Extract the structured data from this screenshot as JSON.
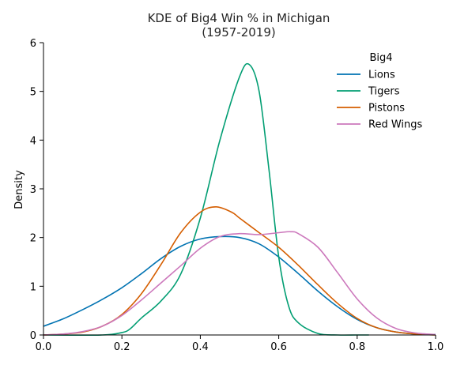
{
  "chart_data": {
    "type": "line",
    "title_line1": "KDE of Big4 Win % in Michigan",
    "title_line2": "(1957-2019)",
    "xlabel": "",
    "ylabel": "Density",
    "xlim": [
      0.0,
      1.0
    ],
    "ylim": [
      0,
      6
    ],
    "xticks": [
      "0.0",
      "0.2",
      "0.4",
      "0.6",
      "0.8",
      "1.0"
    ],
    "yticks": [
      "0",
      "1",
      "2",
      "3",
      "4",
      "5",
      "6"
    ],
    "grid": false,
    "legend": {
      "title": "Big4",
      "placement": "top-right"
    },
    "series": [
      {
        "name": "Lions",
        "color": "#0173b2",
        "x": [
          0.0,
          0.05,
          0.1,
          0.15,
          0.2,
          0.25,
          0.3,
          0.35,
          0.4,
          0.45,
          0.5,
          0.55,
          0.6,
          0.65,
          0.7,
          0.75,
          0.8,
          0.85,
          0.9,
          0.95,
          1.0
        ],
        "y": [
          0.18,
          0.33,
          0.52,
          0.73,
          0.97,
          1.26,
          1.57,
          1.82,
          1.97,
          2.02,
          2.0,
          1.87,
          1.6,
          1.26,
          0.9,
          0.58,
          0.32,
          0.15,
          0.06,
          0.02,
          0.01
        ]
      },
      {
        "name": "Tigers",
        "color": "#029e73",
        "x": [
          0.0,
          0.15,
          0.2,
          0.22,
          0.25,
          0.3,
          0.35,
          0.4,
          0.45,
          0.5,
          0.525,
          0.55,
          0.575,
          0.6,
          0.625,
          0.65,
          0.7,
          0.75,
          0.8,
          0.83
        ],
        "y": [
          0.0,
          0.0,
          0.05,
          0.12,
          0.35,
          0.7,
          1.25,
          2.4,
          4.0,
          5.3,
          5.55,
          5.0,
          3.4,
          1.6,
          0.6,
          0.25,
          0.03,
          0.0,
          0.0,
          0.0
        ]
      },
      {
        "name": "Pistons",
        "color": "#d55e00",
        "x": [
          0.0,
          0.05,
          0.1,
          0.15,
          0.2,
          0.25,
          0.3,
          0.35,
          0.4,
          0.44,
          0.48,
          0.5,
          0.55,
          0.6,
          0.65,
          0.7,
          0.75,
          0.8,
          0.85,
          0.9,
          0.95,
          1.0
        ],
        "y": [
          0.0,
          0.02,
          0.06,
          0.18,
          0.42,
          0.85,
          1.45,
          2.1,
          2.52,
          2.63,
          2.52,
          2.4,
          2.1,
          1.8,
          1.43,
          1.03,
          0.65,
          0.34,
          0.15,
          0.06,
          0.02,
          0.0
        ]
      },
      {
        "name": "Red Wings",
        "color": "#cc78bc",
        "x": [
          0.0,
          0.05,
          0.1,
          0.15,
          0.2,
          0.25,
          0.3,
          0.35,
          0.4,
          0.45,
          0.5,
          0.55,
          0.6,
          0.63,
          0.65,
          0.7,
          0.75,
          0.8,
          0.85,
          0.9,
          0.95,
          1.0
        ],
        "y": [
          0.0,
          0.02,
          0.07,
          0.18,
          0.4,
          0.72,
          1.07,
          1.42,
          1.78,
          2.02,
          2.08,
          2.06,
          2.1,
          2.12,
          2.08,
          1.8,
          1.28,
          0.74,
          0.35,
          0.13,
          0.04,
          0.01
        ]
      }
    ]
  }
}
